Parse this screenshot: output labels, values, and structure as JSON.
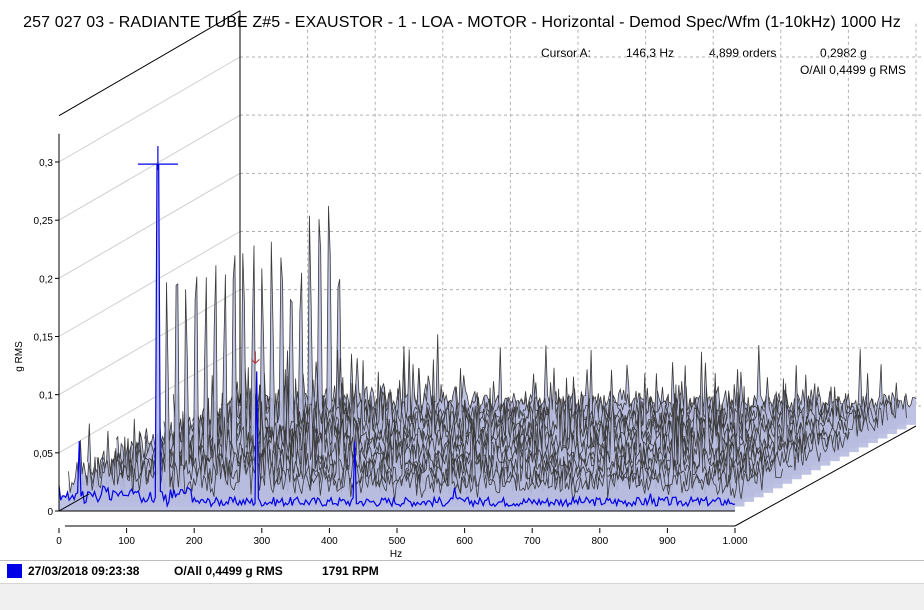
{
  "title": "257 027 03 - RADIANTE TUBE Z#5 - EXAUSTOR - 1 - LOA - MOTOR - Horizontal - Demod Spec/Wfm (1-10kHz) 1000 Hz",
  "cursor": {
    "label": "Cursor A:",
    "freq": "146,3 Hz",
    "orders": "4,899 orders",
    "amp": "0,2982 g"
  },
  "oall_top": "O/All 0,4499 g RMS",
  "footer": {
    "date": "27/03/2018 09:23:38",
    "oall": "O/All 0,4499 g RMS",
    "rpm": "1791 RPM",
    "swatch_color": "#0000e6"
  },
  "chart_data": {
    "type": "waterfall",
    "xlabel": "Hz",
    "ylabel": "g RMS",
    "xlim": [
      0,
      1000
    ],
    "ylim": [
      0,
      0.32
    ],
    "x_ticks": [
      "0",
      "100",
      "200",
      "300",
      "400",
      "500",
      "600",
      "700",
      "800",
      "900",
      "1.000"
    ],
    "y_ticks": [
      "0",
      "0,05",
      "0,1",
      "0,15",
      "0,2",
      "0,25",
      "0,3"
    ],
    "num_traces": 20,
    "front_trace_color": "#0000e6",
    "back_trace_color": "#3a3a3a",
    "fill_color": "#b8bce0",
    "grid": true,
    "front_trace_peaks": [
      {
        "hz": 30,
        "g": 0.06
      },
      {
        "hz": 146.3,
        "g": 0.2982
      },
      {
        "hz": 148,
        "g": 0.14
      },
      {
        "hz": 292,
        "g": 0.12
      },
      {
        "hz": 438,
        "g": 0.06
      },
      {
        "hz": 584,
        "g": 0.02
      },
      {
        "hz": 876,
        "g": 0.015
      }
    ],
    "cursor_hz": 146.3,
    "cursor_g": 0.2982
  }
}
